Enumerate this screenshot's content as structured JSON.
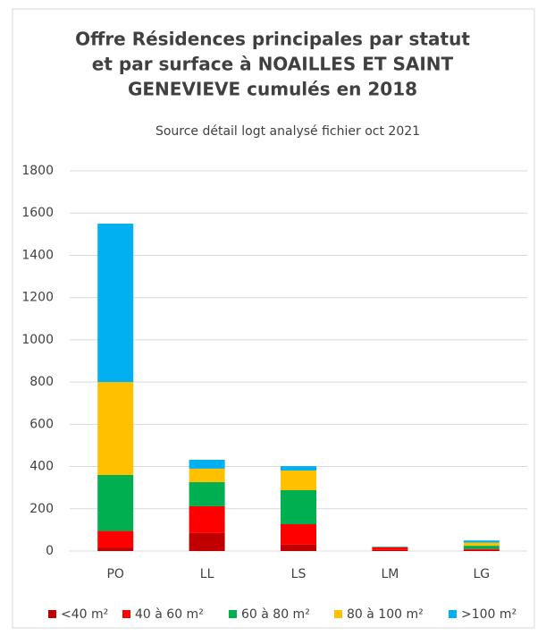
{
  "chart_data": {
    "type": "stacked_bar",
    "title": [
      "Offre Résidences principales par statut",
      "et par surface  à NOAILLES ET SAINT",
      "GENEVIEVE cumulés en 2018"
    ],
    "subtitle": "Source détail logt analysé fichier oct 2021",
    "categories": [
      "PO",
      "LL",
      "LS",
      "LM",
      "LG"
    ],
    "series": [
      {
        "name": "<40 m²",
        "color": "#c00000",
        "values": [
          15,
          85,
          30,
          5,
          5
        ]
      },
      {
        "name": "40 à 60 m²",
        "color": "#ff0000",
        "values": [
          80,
          127,
          97,
          12,
          5
        ]
      },
      {
        "name": "60 à 80 m²",
        "color": "#00b050",
        "values": [
          265,
          114,
          161,
          2,
          15
        ]
      },
      {
        "name": "80 à 100 m²",
        "color": "#ffc000",
        "values": [
          440,
          64,
          93,
          1,
          15
        ]
      },
      {
        "name": ">100 m²",
        "color": "#00b0f0",
        "values": [
          750,
          42,
          21,
          1,
          10
        ]
      }
    ],
    "ylim": [
      0,
      1800
    ],
    "yticks": [
      0,
      200,
      400,
      600,
      800,
      1000,
      1200,
      1400,
      1600,
      1800
    ],
    "grid": true,
    "legend": "bottom"
  }
}
